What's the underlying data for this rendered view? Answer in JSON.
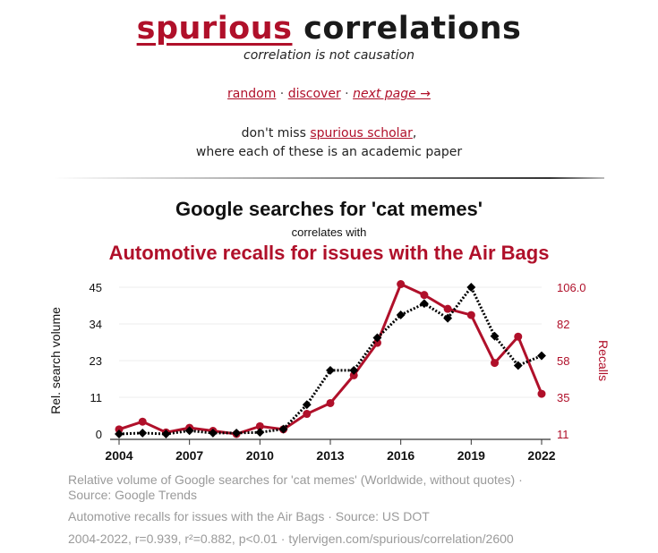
{
  "site": {
    "brand_word1": "spurious",
    "brand_word2": "correlations",
    "tagline": "correlation is not causation",
    "nav": {
      "random": "random",
      "sep1": " · ",
      "discover": "discover",
      "sep2": " · ",
      "next": "next page →"
    },
    "promo_prefix": "don't miss ",
    "promo_link": "spurious scholar",
    "promo_suffix": ",",
    "promo_line2": "where each of these is an academic paper"
  },
  "heading": {
    "series1": "Google searches for 'cat memes'",
    "connector": "correlates with",
    "series2": "Automotive recalls for issues with the Air Bags"
  },
  "colors": {
    "accent": "#b0102a",
    "series1": "#000000",
    "series2": "#b0102a",
    "legend_text": "#9a9a9a"
  },
  "chart_data": {
    "type": "line",
    "x": [
      2004,
      2005,
      2006,
      2007,
      2008,
      2009,
      2010,
      2011,
      2012,
      2013,
      2014,
      2015,
      2016,
      2017,
      2018,
      2019,
      2020,
      2021,
      2022
    ],
    "x_ticks": [
      "2004",
      "2007",
      "2010",
      "2013",
      "2016",
      "2019",
      "2022"
    ],
    "y_left": {
      "label": "Rel. search volume",
      "ticks": [
        "0",
        "11",
        "23",
        "34",
        "45"
      ],
      "range": [
        0,
        45
      ]
    },
    "y_right": {
      "label": "Recalls",
      "ticks": [
        "11",
        "35",
        "58",
        "82",
        "106.0"
      ],
      "range": [
        11,
        106
      ]
    },
    "grid": true,
    "series": [
      {
        "name": "Relative volume of Google searches for 'cat memes' (Worldwide, without quotes) · Source: Google Trends",
        "axis": "left",
        "style": "dotted",
        "marker": "diamond",
        "color": "#000000",
        "values": [
          0,
          0.3,
          0,
          1,
          0.3,
          0.3,
          0.5,
          1.5,
          9,
          19.5,
          19.5,
          29.5,
          36.5,
          40,
          35.5,
          45,
          30,
          21,
          24
        ]
      },
      {
        "name": "Automotive recalls for issues with the Air Bags · Source: US DOT",
        "axis": "right",
        "style": "solid",
        "marker": "circle",
        "color": "#b0102a",
        "values": [
          14,
          19,
          12,
          15,
          13,
          11,
          16,
          14,
          24,
          31,
          49,
          70,
          108,
          101,
          92,
          88,
          57,
          74,
          37
        ]
      }
    ],
    "stats": "2004-2022, r=0.939, r²=0.882, p<0.01 · tylervigen.com/spurious/correlation/2600"
  }
}
